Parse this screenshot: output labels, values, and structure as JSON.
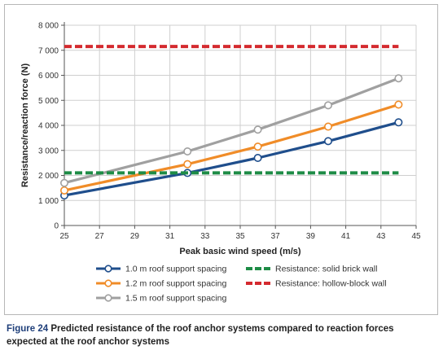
{
  "chart_data": {
    "type": "line",
    "xlabel": "Peak basic wind speed (m/s)",
    "ylabel": "Resistance/reaction force (N)",
    "xlim": [
      25,
      45
    ],
    "ylim": [
      0,
      8000
    ],
    "xticks": [
      "25",
      "27",
      "29",
      "31",
      "33",
      "35",
      "37",
      "39",
      "41",
      "43",
      "45"
    ],
    "yticks": [
      "0",
      "1 000",
      "2 000",
      "3 000",
      "4 000",
      "5 000",
      "6 000",
      "7 000",
      "8 000"
    ],
    "grid": true,
    "legend_position": "bottom",
    "series": [
      {
        "name": "1.0 m roof support spacing",
        "color": "#1f4e8c",
        "style": "line-marker",
        "x": [
          25,
          32,
          36,
          40,
          44
        ],
        "values": [
          1200,
          2100,
          2700,
          3370,
          4120
        ]
      },
      {
        "name": "1.2 m roof support spacing",
        "color": "#f08c28",
        "style": "line-marker",
        "x": [
          25,
          32,
          36,
          40,
          44
        ],
        "values": [
          1400,
          2450,
          3150,
          3950,
          4830
        ]
      },
      {
        "name": "1.5 m roof support spacing",
        "color": "#a0a0a0",
        "style": "line-marker",
        "x": [
          25,
          32,
          36,
          40,
          44
        ],
        "values": [
          1700,
          2960,
          3830,
          4800,
          5880
        ]
      },
      {
        "name": "Resistance: solid brick wall",
        "color": "#1e8c46",
        "style": "dashed",
        "x": [
          25,
          44
        ],
        "values": [
          2100,
          2100
        ]
      },
      {
        "name": "Resistance: hollow-block wall",
        "color": "#d42a2f",
        "style": "dashed",
        "x": [
          25,
          44
        ],
        "values": [
          7150,
          7150
        ]
      }
    ]
  },
  "caption": {
    "label": "Figure 24",
    "text": "Predicted resistance of the roof anchor systems compared to reaction forces expected at the roof anchor systems"
  }
}
